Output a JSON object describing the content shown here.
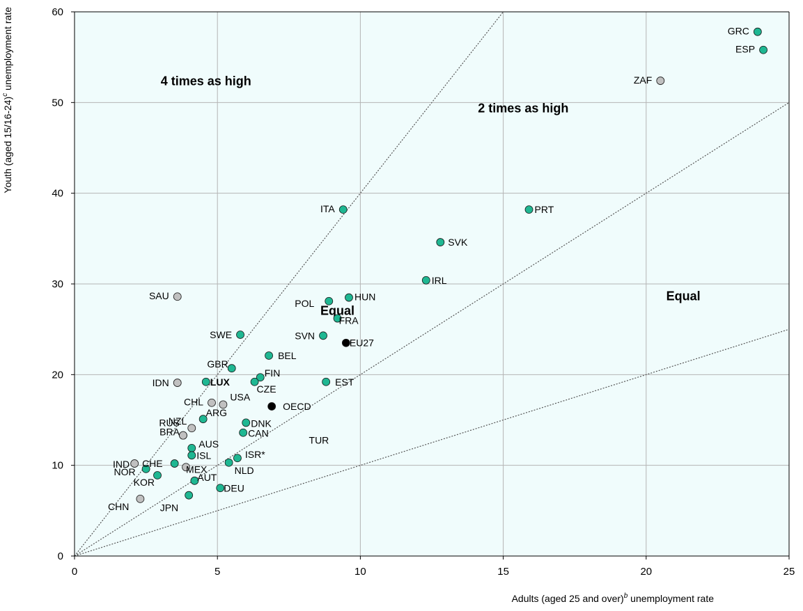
{
  "chart_data": {
    "type": "scatter",
    "xlabel": "Adults (aged 25 and over)",
    "xlabel_sup": "b",
    "xlabel_tail": " unemployment rate",
    "ylabel": "Youth (aged 15/16-24)",
    "ylabel_sup": "c",
    "ylabel_tail": " unemployment rate",
    "xlim": [
      0,
      25
    ],
    "ylim": [
      0,
      60
    ],
    "xticks": [
      "0",
      "5",
      "10",
      "15",
      "20",
      "25"
    ],
    "yticks": [
      "0",
      "10",
      "20",
      "30",
      "40",
      "50",
      "60"
    ],
    "grid": true,
    "background_color": "#f0fcfc",
    "colors": {
      "oecd_member": "#1fb792",
      "non_member": "#c0c0c0",
      "aggregate": "#000000",
      "highlight_label": "#ff0000"
    },
    "reference_lines": [
      {
        "ratio": 4
      },
      {
        "ratio": 2
      },
      {
        "ratio": 1
      }
    ],
    "annotations": [
      {
        "text": "4 times as high",
        "x": 4.6,
        "y": 51.9
      },
      {
        "text": "2 times as high",
        "x": 15.7,
        "y": 48.9
      },
      {
        "text": "Equal",
        "x": 21.3,
        "y": 28.2
      },
      {
        "text": "Equal",
        "x": 9.2,
        "y": 26.6
      }
    ],
    "points": [
      {
        "label": "GRC",
        "x": 23.9,
        "y": 57.8,
        "group": "oecd_member"
      },
      {
        "label": "ESP",
        "x": 24.1,
        "y": 55.8,
        "group": "oecd_member"
      },
      {
        "label": "ZAF",
        "x": 20.5,
        "y": 52.4,
        "group": "non_member"
      },
      {
        "label": "PRT",
        "x": 15.9,
        "y": 38.2,
        "group": "oecd_member"
      },
      {
        "label": "ITA",
        "x": 9.4,
        "y": 38.2,
        "group": "oecd_member"
      },
      {
        "label": "SVK",
        "x": 12.8,
        "y": 34.6,
        "group": "oecd_member"
      },
      {
        "label": "IRL",
        "x": 12.3,
        "y": 30.4,
        "group": "oecd_member"
      },
      {
        "label": "SAU",
        "x": 3.6,
        "y": 28.6,
        "group": "non_member"
      },
      {
        "label": "HUN",
        "x": 9.6,
        "y": 28.5,
        "group": "oecd_member"
      },
      {
        "label": "POL",
        "x": 8.9,
        "y": 28.1,
        "group": "oecd_member"
      },
      {
        "label": "FRA",
        "x": 9.2,
        "y": 26.2,
        "group": "oecd_member"
      },
      {
        "label": "SWE",
        "x": 5.8,
        "y": 24.4,
        "group": "oecd_member"
      },
      {
        "label": "SVN",
        "x": 8.7,
        "y": 24.3,
        "group": "oecd_member"
      },
      {
        "label": "EU27",
        "x": 9.5,
        "y": 23.5,
        "group": "aggregate"
      },
      {
        "label": "BEL",
        "x": 6.8,
        "y": 22.1,
        "group": "oecd_member"
      },
      {
        "label": "GBR",
        "x": 5.5,
        "y": 20.7,
        "group": "oecd_member"
      },
      {
        "label": "FIN",
        "x": 6.5,
        "y": 19.7,
        "group": "oecd_member"
      },
      {
        "label": "CZE",
        "x": 6.3,
        "y": 19.2,
        "group": "oecd_member"
      },
      {
        "label": "IDN",
        "x": 3.6,
        "y": 19.1,
        "group": "non_member"
      },
      {
        "label": "LUX",
        "x": 4.6,
        "y": 19.2,
        "group": "oecd_member",
        "highlight": true
      },
      {
        "label": "EST",
        "x": 8.8,
        "y": 19.2,
        "group": "oecd_member"
      },
      {
        "label": "CHL",
        "x": 4.8,
        "y": 16.9,
        "group": "non_member"
      },
      {
        "label": "USA",
        "x": 5.2,
        "y": 16.7,
        "group": "non_member"
      },
      {
        "label": "OECD",
        "x": 6.9,
        "y": 16.5,
        "group": "aggregate"
      },
      {
        "label": "ARG",
        "x": 4.5,
        "y": 15.1,
        "group": "oecd_member"
      },
      {
        "label": "DNK",
        "x": 6.0,
        "y": 14.7,
        "group": "oecd_member"
      },
      {
        "label": "NZL",
        "x": 4.1,
        "y": 14.1,
        "group": "non_member"
      },
      {
        "label": "RUS",
        "x": 3.8,
        "y": 13.3,
        "group": "non_member"
      },
      {
        "label": "BRA",
        "x": 3.8,
        "y": 13.3,
        "group": "non_member"
      },
      {
        "label": "CAN",
        "x": 5.9,
        "y": 13.6,
        "group": "oecd_member"
      },
      {
        "label": "AUS",
        "x": 4.1,
        "y": 11.9,
        "group": "oecd_member"
      },
      {
        "label": "ISL",
        "x": 4.1,
        "y": 11.1,
        "group": "oecd_member"
      },
      {
        "label": "ISR*",
        "x": 5.7,
        "y": 10.8,
        "group": "oecd_member"
      },
      {
        "label": "NLD",
        "x": 5.4,
        "y": 10.3,
        "group": "oecd_member"
      },
      {
        "label": "IND",
        "x": 2.1,
        "y": 10.2,
        "group": "non_member"
      },
      {
        "label": "CHE",
        "x": 3.5,
        "y": 10.2,
        "group": "oecd_member"
      },
      {
        "label": "MEX",
        "x": 3.9,
        "y": 9.8,
        "group": "non_member"
      },
      {
        "label": "NOR",
        "x": 2.5,
        "y": 9.6,
        "group": "oecd_member"
      },
      {
        "label": "KOR",
        "x": 2.9,
        "y": 8.9,
        "group": "oecd_member"
      },
      {
        "label": "AUT",
        "x": 4.2,
        "y": 8.3,
        "group": "oecd_member"
      },
      {
        "label": "DEU",
        "x": 5.1,
        "y": 7.5,
        "group": "oecd_member"
      },
      {
        "label": "JPN",
        "x": 4.0,
        "y": 6.7,
        "group": "oecd_member"
      },
      {
        "label": "CHN",
        "x": 2.3,
        "y": 6.3,
        "group": "non_member"
      },
      {
        "label": "TUR",
        "x": null,
        "y": null,
        "group": "unplotted"
      }
    ]
  }
}
